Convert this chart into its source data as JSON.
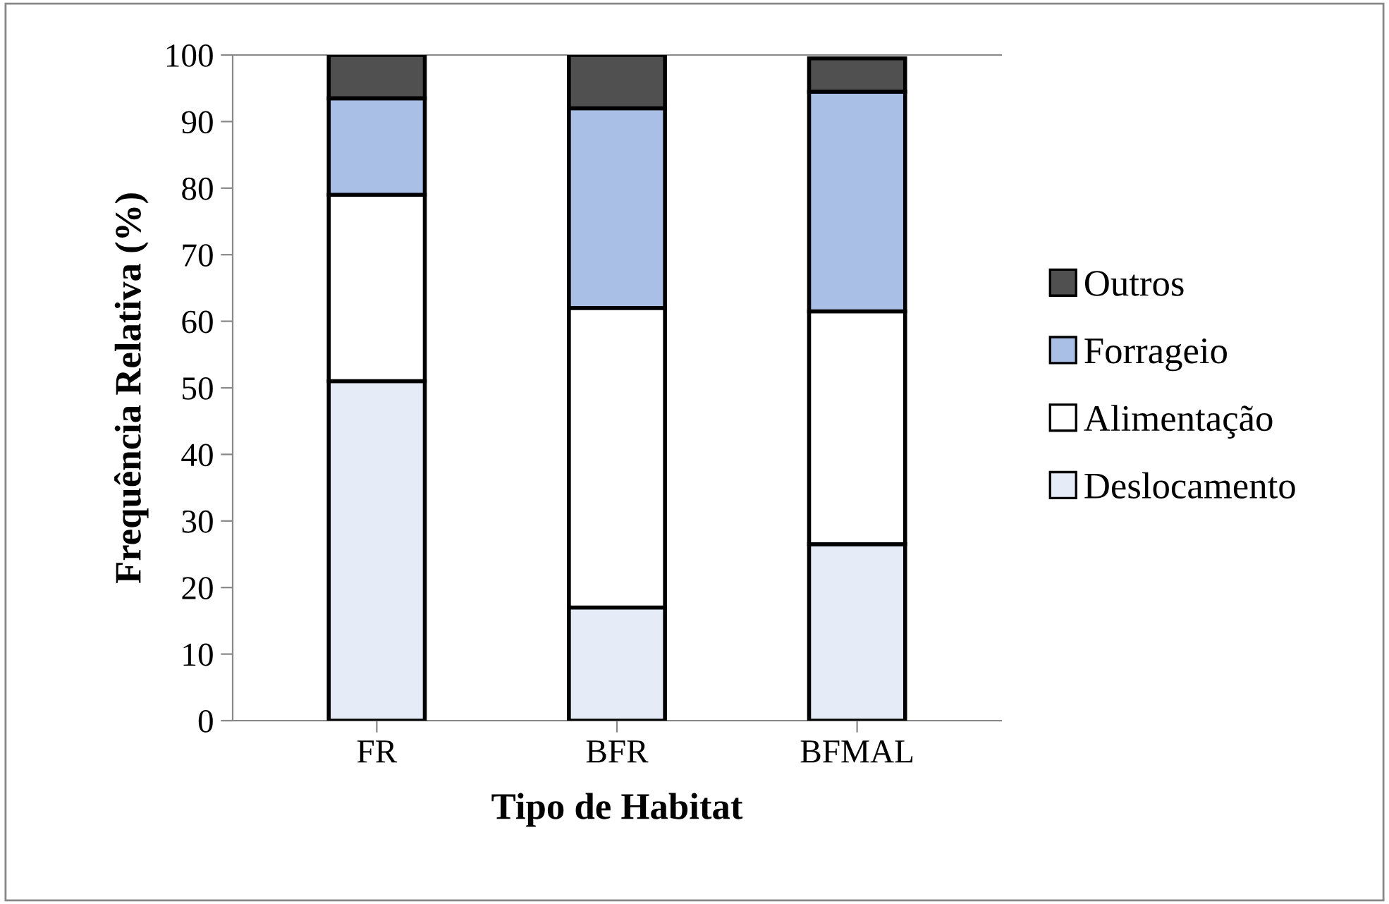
{
  "chart_data": {
    "type": "bar",
    "stacked": true,
    "xlabel": "Tipo de Habitat",
    "ylabel": "Frequência Relativa (%)",
    "categories": [
      "FR",
      "BFR",
      "BFMAL"
    ],
    "series": [
      {
        "name": "Deslocamento",
        "color": "#e6ecf7",
        "values": [
          51,
          17,
          26.5
        ]
      },
      {
        "name": "Alimentação",
        "color": "#ffffff",
        "values": [
          28,
          45,
          35
        ]
      },
      {
        "name": "Forrageio",
        "color": "#a9bfe6",
        "values": [
          14.5,
          30,
          33
        ]
      },
      {
        "name": "Outros",
        "color": "#505050",
        "values": [
          6.5,
          8,
          5
        ]
      }
    ],
    "ylim": [
      0,
      100
    ],
    "yticks": [
      0,
      10,
      20,
      30,
      40,
      50,
      60,
      70,
      80,
      90,
      100
    ],
    "legend": "right",
    "grid": false
  }
}
